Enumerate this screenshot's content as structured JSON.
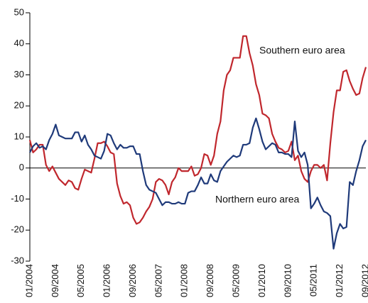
{
  "chart_data": {
    "type": "line",
    "categories": [
      "01/2004",
      null,
      null,
      null,
      null,
      null,
      null,
      null,
      "09/2004",
      null,
      null,
      null,
      null,
      null,
      null,
      null,
      "05/2005",
      null,
      null,
      null,
      null,
      null,
      null,
      null,
      "01/2006",
      null,
      null,
      null,
      null,
      null,
      null,
      null,
      "09/2006",
      null,
      null,
      null,
      null,
      null,
      null,
      null,
      "05/2007",
      null,
      null,
      null,
      null,
      null,
      null,
      null,
      "01/2008",
      null,
      null,
      null,
      null,
      null,
      null,
      null,
      "09/2008",
      null,
      null,
      null,
      null,
      null,
      null,
      null,
      "05/2009",
      null,
      null,
      null,
      null,
      null,
      null,
      null,
      "01/2010",
      null,
      null,
      null,
      null,
      null,
      null,
      null,
      "09/2010",
      null,
      null,
      null,
      null,
      null,
      null,
      null,
      "05/2011",
      null,
      null,
      null,
      null,
      null,
      null,
      null,
      "01/2012",
      null,
      null,
      null,
      null,
      null,
      null,
      null,
      "09/2012"
    ],
    "series": [
      {
        "name": "Southern euro area",
        "color": "#c0272d",
        "values": [
          9,
          5,
          6,
          7.5,
          7.5,
          1,
          -1,
          0.5,
          -1.5,
          -3.5,
          -4.5,
          -5.5,
          -4,
          -4.5,
          -6.5,
          -7,
          -3.5,
          -0.5,
          -1,
          -1.5,
          3,
          8,
          8,
          8.5,
          7,
          5,
          4.5,
          -5,
          -9,
          -11.5,
          -11,
          -12,
          -16,
          -18,
          -17.5,
          -16,
          -14,
          -12.5,
          -10,
          -4.5,
          -3.5,
          -4,
          -5.5,
          -8.5,
          -4.5,
          -3,
          0,
          -1,
          -1,
          -1,
          0.5,
          -2.5,
          -2,
          0,
          4.5,
          4,
          1,
          4,
          11,
          15,
          25,
          30,
          31.5,
          35.5,
          35.5,
          35.5,
          42.5,
          42.5,
          37,
          33,
          27,
          23.5,
          17.5,
          17,
          16,
          11,
          8.5,
          6.5,
          6,
          5,
          5.5,
          8.5,
          2.5,
          4,
          -1,
          -3.5,
          -4.5,
          -1,
          1,
          1,
          0,
          1,
          -4,
          8,
          18,
          25,
          25,
          31,
          31.5,
          28,
          25.5,
          23.5,
          24,
          29,
          32.5
        ]
      },
      {
        "name": "Northern euro area",
        "color": "#1f3a7a",
        "values": [
          5,
          7,
          8,
          6.5,
          7,
          6,
          9,
          11,
          14,
          10.5,
          10,
          9.5,
          9.5,
          9.5,
          11.5,
          11.5,
          8.5,
          10.5,
          7.5,
          6,
          4,
          3.5,
          3,
          5.5,
          11,
          10.5,
          8,
          6,
          7.5,
          6.5,
          6.5,
          7,
          7,
          4.5,
          4.5,
          -1,
          -5.5,
          -7,
          -7.5,
          -8,
          -10,
          -12,
          -11,
          -11,
          -11.5,
          -11.5,
          -11,
          -11.5,
          -11.5,
          -8,
          -7.5,
          -7.5,
          -5.5,
          -3,
          -5,
          -5,
          -2,
          -4,
          -4.5,
          -1,
          0.5,
          2,
          3,
          4,
          3.5,
          4,
          7.5,
          7.5,
          8,
          13,
          16,
          12.5,
          8.5,
          6,
          7,
          8,
          7.5,
          5,
          5,
          4.5,
          4.5,
          3.5,
          15,
          5.5,
          3.5,
          5,
          1,
          -13,
          -11.5,
          -9.5,
          -12,
          -14,
          -14.5,
          -15.5,
          -26,
          -21,
          -18,
          -19.5,
          -19,
          -4.5,
          -5.5,
          -1,
          2.5,
          7,
          9
        ]
      }
    ],
    "ylim": [
      -30,
      50
    ],
    "yticks": [
      -30,
      -20,
      -10,
      0,
      10,
      20,
      30,
      40,
      50
    ]
  }
}
